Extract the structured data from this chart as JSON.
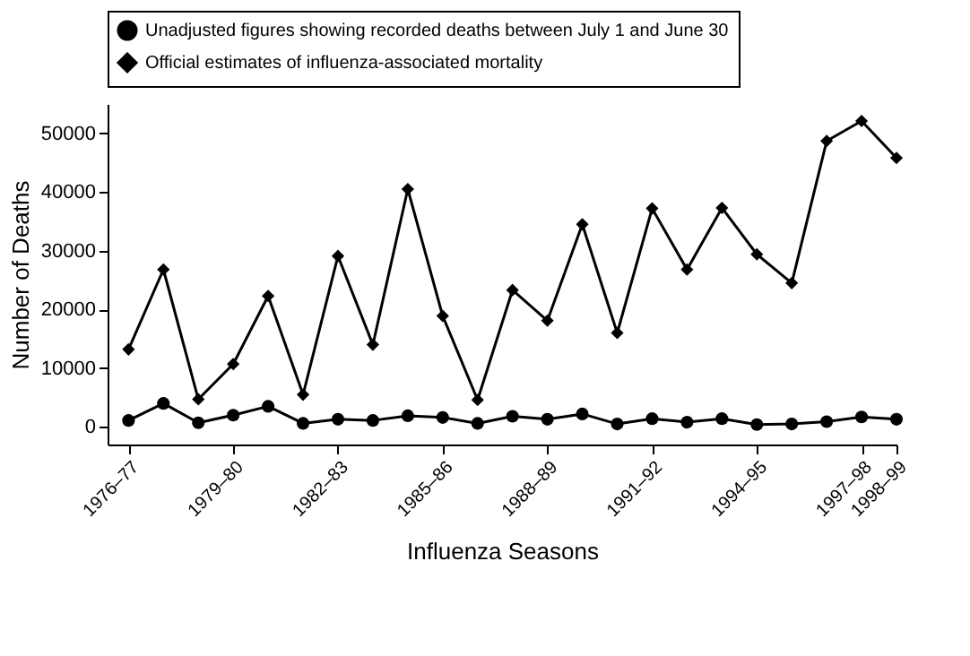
{
  "chart_data": {
    "type": "line",
    "xlabel": "Influenza Seasons",
    "ylabel": "Number of Deaths",
    "categories": [
      "1976–77",
      null,
      null,
      "1979–80",
      null,
      null,
      "1982–83",
      null,
      null,
      "1985–86",
      null,
      null,
      "1988–89",
      null,
      null,
      "1991–92",
      null,
      null,
      "1994–95",
      null,
      null,
      "1997–98",
      "1998–99"
    ],
    "series": [
      {
        "name": "Unadjusted figures showing recorded deaths between July 1 and June 30",
        "color": "#000000",
        "marker": "circle",
        "values": [
          1100,
          4000,
          700,
          2000,
          3500,
          600,
          1300,
          1100,
          1900,
          1600,
          600,
          1800,
          1300,
          2200,
          500,
          1400,
          800,
          1400,
          400,
          500,
          900,
          1700,
          1300
        ]
      },
      {
        "name": "Official estimates of influenza-associated mortality",
        "color": "#000000",
        "marker": "diamond",
        "values": [
          13200,
          26800,
          4700,
          10700,
          22300,
          5500,
          29100,
          14000,
          40500,
          18900,
          4600,
          23300,
          18100,
          34500,
          16000,
          37200,
          26800,
          37300,
          29400,
          24500,
          48700,
          52100,
          45800
        ]
      }
    ],
    "ylim": [
      -3000,
      55000
    ],
    "yticks": [
      0,
      10000,
      20000,
      30000,
      40000,
      50000
    ],
    "grid": false,
    "legend": "top",
    "line_style": "solid"
  }
}
